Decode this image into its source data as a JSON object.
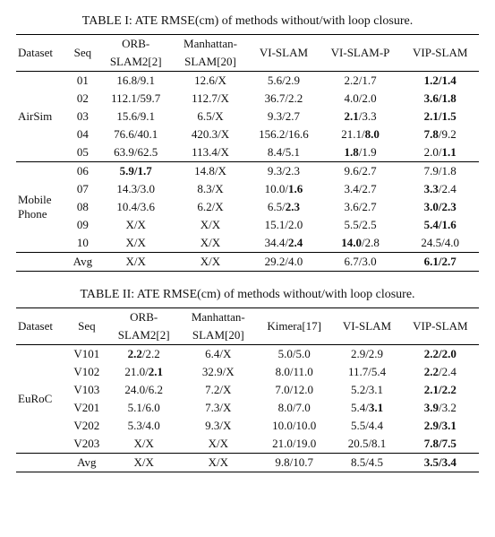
{
  "table1": {
    "caption": "TABLE I: ATE RMSE(cm) of methods without/with loop closure.",
    "headers": {
      "dataset": "Dataset",
      "seq": "Seq",
      "m1a": "ORB-",
      "m1b": "SLAM2[2]",
      "m2a": "Manhattan-",
      "m2b": "SLAM[20]",
      "m3": "VI-SLAM",
      "m4": "VI-SLAM-P",
      "m5": "VIP-SLAM"
    },
    "groups": [
      {
        "dataset": "AirSim",
        "rows": [
          {
            "seq": "01",
            "c": [
              {
                "p": "16.8/9.1"
              },
              {
                "p": "12.6/X"
              },
              {
                "p": "5.6/2.9"
              },
              {
                "p": "2.2/1.7"
              },
              {
                "b": "1.2/1.4"
              }
            ]
          },
          {
            "seq": "02",
            "c": [
              {
                "p": "112.1/59.7"
              },
              {
                "p": "112.7/X"
              },
              {
                "p": "36.7/2.2"
              },
              {
                "p": "4.0/2.0"
              },
              {
                "b": "3.6/1.8"
              }
            ]
          },
          {
            "seq": "03",
            "c": [
              {
                "p": "15.6/9.1"
              },
              {
                "p": "6.5/X"
              },
              {
                "p": "9.3/2.7"
              },
              {
                "pre": "",
                "b": "2.1",
                "post": "/3.3"
              },
              {
                "b": "2.1/1.5"
              }
            ]
          },
          {
            "seq": "04",
            "c": [
              {
                "p": "76.6/40.1"
              },
              {
                "p": "420.3/X"
              },
              {
                "p": "156.2/16.6"
              },
              {
                "pre": "21.1/",
                "b": "8.0",
                "post": ""
              },
              {
                "pre": "",
                "b": "7.8",
                "post": "/9.2"
              }
            ]
          },
          {
            "seq": "05",
            "c": [
              {
                "p": "63.9/62.5"
              },
              {
                "p": "113.4/X"
              },
              {
                "p": "8.4/5.1"
              },
              {
                "pre": "",
                "b": "1.8",
                "post": "/1.9"
              },
              {
                "pre": "2.0/",
                "b": "1.1",
                "post": ""
              }
            ]
          }
        ]
      },
      {
        "dataset": "Mobile Phone",
        "rows": [
          {
            "seq": "06",
            "c": [
              {
                "b": "5.9/1.7"
              },
              {
                "p": "14.8/X"
              },
              {
                "p": "9.3/2.3"
              },
              {
                "p": "9.6/2.7"
              },
              {
                "p": "7.9/1.8"
              }
            ]
          },
          {
            "seq": "07",
            "c": [
              {
                "p": "14.3/3.0"
              },
              {
                "p": "8.3/X"
              },
              {
                "pre": "10.0/",
                "b": "1.6",
                "post": ""
              },
              {
                "p": "3.4/2.7"
              },
              {
                "pre": "",
                "b": "3.3",
                "post": "/2.4"
              }
            ]
          },
          {
            "seq": "08",
            "c": [
              {
                "p": "10.4/3.6"
              },
              {
                "p": "6.2/X"
              },
              {
                "pre": "6.5/",
                "b": "2.3",
                "post": ""
              },
              {
                "p": "3.6/2.7"
              },
              {
                "b": "3.0/2.3"
              }
            ]
          },
          {
            "seq": "09",
            "c": [
              {
                "p": "X/X"
              },
              {
                "p": "X/X"
              },
              {
                "p": "15.1/2.0"
              },
              {
                "p": "5.5/2.5"
              },
              {
                "b": "5.4/1.6"
              }
            ]
          },
          {
            "seq": "10",
            "c": [
              {
                "p": "X/X"
              },
              {
                "p": "X/X"
              },
              {
                "pre": "34.4/",
                "b": "2.4",
                "post": ""
              },
              {
                "pre": "",
                "b": "14.0",
                "post": "/2.8"
              },
              {
                "p": "24.5/4.0"
              }
            ]
          }
        ]
      }
    ],
    "avg": {
      "label": "Avg",
      "c": [
        {
          "p": "X/X"
        },
        {
          "p": "X/X"
        },
        {
          "p": "29.2/4.0"
        },
        {
          "p": "6.7/3.0"
        },
        {
          "b": "6.1/2.7"
        }
      ]
    }
  },
  "table2": {
    "caption": "TABLE II: ATE RMSE(cm) of methods without/with loop closure.",
    "headers": {
      "dataset": "Dataset",
      "seq": "Seq",
      "m1a": "ORB-",
      "m1b": "SLAM2[2]",
      "m2a": "Manhattan-",
      "m2b": "SLAM[20]",
      "m3": "Kimera[17]",
      "m4": "VI-SLAM",
      "m5": "VIP-SLAM"
    },
    "groups": [
      {
        "dataset": "EuRoC",
        "rows": [
          {
            "seq": "V101",
            "c": [
              {
                "pre": "",
                "b": "2.2",
                "post": "/2.2"
              },
              {
                "p": "6.4/X"
              },
              {
                "p": "5.0/5.0"
              },
              {
                "p": "2.9/2.9"
              },
              {
                "b": "2.2/2.0"
              }
            ]
          },
          {
            "seq": "V102",
            "c": [
              {
                "pre": "21.0/",
                "b": "2.1",
                "post": ""
              },
              {
                "p": "32.9/X"
              },
              {
                "p": "8.0/11.0"
              },
              {
                "p": "11.7/5.4"
              },
              {
                "pre": "",
                "b": "2.2",
                "post": "/2.4"
              }
            ]
          },
          {
            "seq": "V103",
            "c": [
              {
                "p": "24.0/6.2"
              },
              {
                "p": "7.2/X"
              },
              {
                "p": "7.0/12.0"
              },
              {
                "p": "5.2/3.1"
              },
              {
                "b": "2.1/2.2"
              }
            ]
          },
          {
            "seq": "V201",
            "c": [
              {
                "p": "5.1/6.0"
              },
              {
                "p": "7.3/X"
              },
              {
                "p": "8.0/7.0"
              },
              {
                "pre": "5.4/",
                "b": "3.1",
                "post": ""
              },
              {
                "pre": "",
                "b": "3.9",
                "post": "/3.2"
              }
            ]
          },
          {
            "seq": "V202",
            "c": [
              {
                "p": "5.3/4.0"
              },
              {
                "p": "9.3/X"
              },
              {
                "p": "10.0/10.0"
              },
              {
                "p": "5.5/4.4"
              },
              {
                "b": "2.9/3.1"
              }
            ]
          },
          {
            "seq": "V203",
            "c": [
              {
                "p": "X/X"
              },
              {
                "p": "X/X"
              },
              {
                "p": "21.0/19.0"
              },
              {
                "p": "20.5/8.1"
              },
              {
                "b": "7.8/7.5"
              }
            ]
          }
        ]
      }
    ],
    "avg": {
      "label": "Avg",
      "c": [
        {
          "p": "X/X"
        },
        {
          "p": "X/X"
        },
        {
          "p": "9.8/10.7"
        },
        {
          "p": "8.5/4.5"
        },
        {
          "b": "3.5/3.4"
        }
      ]
    }
  }
}
